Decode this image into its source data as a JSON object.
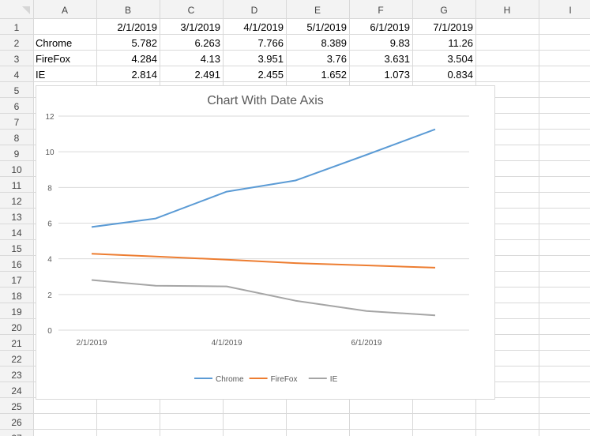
{
  "spreadsheet": {
    "columns": [
      "A",
      "B",
      "C",
      "D",
      "E",
      "F",
      "G",
      "H",
      "I"
    ],
    "rows": [
      "1",
      "2",
      "3",
      "4",
      "5",
      "6",
      "7",
      "8",
      "9",
      "10",
      "11",
      "12",
      "13",
      "14",
      "15",
      "16",
      "17",
      "18",
      "19",
      "20",
      "21",
      "22",
      "23",
      "24",
      "25",
      "26",
      "27"
    ],
    "header_row": [
      "",
      "2/1/2019",
      "3/1/2019",
      "4/1/2019",
      "5/1/2019",
      "6/1/2019",
      "7/1/2019"
    ],
    "data_rows": [
      [
        "Chrome",
        "5.782",
        "6.263",
        "7.766",
        "8.389",
        "9.83",
        "11.26"
      ],
      [
        "FireFox",
        "4.284",
        "4.13",
        "3.951",
        "3.76",
        "3.631",
        "3.504"
      ],
      [
        "IE",
        "2.814",
        "2.491",
        "2.455",
        "1.652",
        "1.073",
        "0.834"
      ]
    ]
  },
  "chart_data": {
    "type": "line",
    "title": "Chart With Date Axis",
    "xlabel": "",
    "ylabel": "",
    "x": [
      "2/1/2019",
      "3/1/2019",
      "4/1/2019",
      "5/1/2019",
      "6/1/2019",
      "7/1/2019"
    ],
    "x_tick_labels": [
      "2/1/2019",
      "4/1/2019",
      "6/1/2019"
    ],
    "y_ticks": [
      0,
      2,
      4,
      6,
      8,
      10,
      12
    ],
    "ylim": [
      0,
      12
    ],
    "grid": true,
    "legend": "bottom",
    "series": [
      {
        "name": "Chrome",
        "color": "#5b9bd5",
        "values": [
          5.782,
          6.263,
          7.766,
          8.389,
          9.83,
          11.26
        ]
      },
      {
        "name": "FireFox",
        "color": "#ed7d31",
        "values": [
          4.284,
          4.13,
          3.951,
          3.76,
          3.631,
          3.504
        ]
      },
      {
        "name": "IE",
        "color": "#a5a5a5",
        "values": [
          2.814,
          2.491,
          2.455,
          1.652,
          1.073,
          0.834
        ]
      }
    ]
  }
}
